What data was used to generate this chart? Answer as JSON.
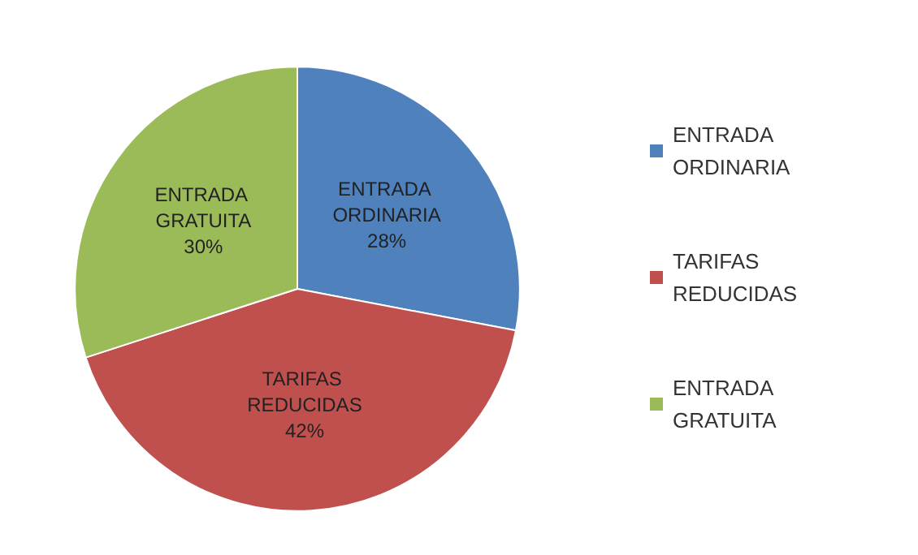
{
  "chart_data": {
    "type": "pie",
    "categories": [
      "ENTRADA ORDINARIA",
      "TARIFAS REDUCIDAS",
      "ENTRADA GRATUITA"
    ],
    "values": [
      28,
      42,
      30
    ],
    "colors": [
      "#4f81bd",
      "#c0504d",
      "#9bbb59"
    ],
    "value_labels": [
      "28%",
      "42%",
      "30%"
    ],
    "legend": "right"
  }
}
